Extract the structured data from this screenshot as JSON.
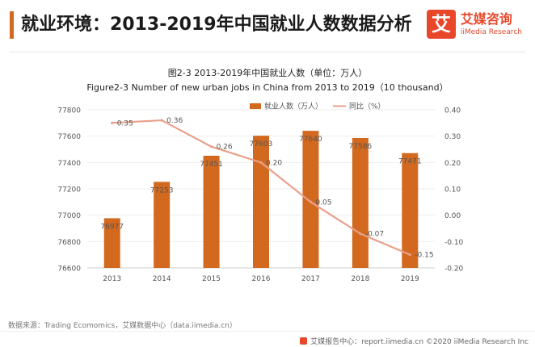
{
  "header": {
    "title": "就业环境：2013-2019年中国就业人数数据分析",
    "logo_mark": "艾",
    "logo_cn": "艾媒咨询",
    "logo_en": "iiMedia Research"
  },
  "chart_data": {
    "type": "bar+line",
    "title_cn": "图2-3 2013-2019年中国就业人数（单位：万人）",
    "title_en": "Figure2-3 Number of new urban jobs in China from 2013 to 2019（10 thousand）",
    "categories": [
      "2013",
      "2014",
      "2015",
      "2016",
      "2017",
      "2018",
      "2019"
    ],
    "series": [
      {
        "name": "就业人数（万人）",
        "type": "bar",
        "axis": "left",
        "color": "#d2691e",
        "values": [
          76977,
          77253,
          77451,
          77603,
          77640,
          77586,
          77471
        ],
        "labels": [
          "76977",
          "77253",
          "77451",
          "77603",
          "77640",
          "77586",
          "77471"
        ]
      },
      {
        "name": "同比（%）",
        "type": "line",
        "axis": "right",
        "color": "#e8a08a",
        "values": [
          0.35,
          0.36,
          0.26,
          0.2,
          0.05,
          -0.07,
          -0.15
        ],
        "labels": [
          "0.35",
          "0.36",
          "0.26",
          "0.20",
          "0.05",
          "-0.07",
          "-0.15"
        ]
      }
    ],
    "left_axis": {
      "min": 76600,
      "max": 77800,
      "ticks": [
        "76600",
        "76800",
        "77000",
        "77200",
        "77400",
        "77600",
        "77800"
      ]
    },
    "right_axis": {
      "min": -0.2,
      "max": 0.4,
      "ticks": [
        "-0.20",
        "-0.10",
        "0.00",
        "0.10",
        "0.20",
        "0.30",
        "0.40"
      ]
    },
    "legend_position": "top-right"
  },
  "footer": {
    "source": "数据来源：Trading Ecomomics，艾媒数据中心（data.iimedia.cn）",
    "report": "艾媒报告中心：report.iimedia.cn  ©2020  iiMedia Research  Inc"
  }
}
